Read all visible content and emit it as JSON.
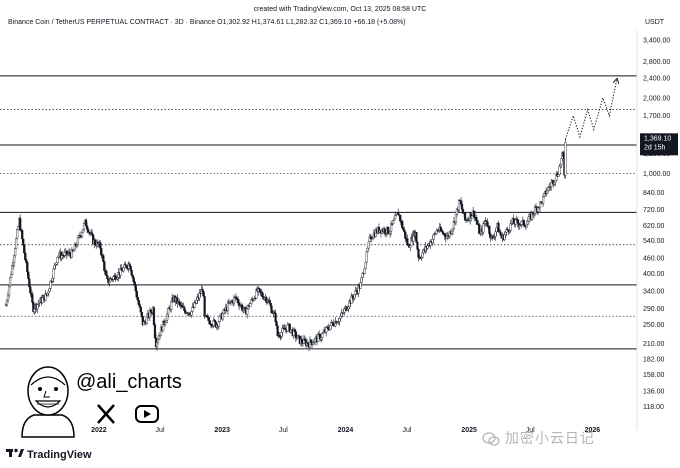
{
  "header": {
    "credit": "created with TradingView.com, Oct 13, 2025 08:58 UTC",
    "symbol_line": "Binance Coin / TetherUS PERPETUAL CONTRACT · 3D · Binance  O1,302.92  H1,374.61  L1,282.32  C1,369.10  +66.18 (+5.08%)",
    "currency": "USDT"
  },
  "price_badge": {
    "price": "1,369.10",
    "countdown": "2d 15h"
  },
  "branding": {
    "logo": "TradingView",
    "handle": "@ali_charts",
    "watermark": "加密小云日记"
  },
  "icons": [
    "x-logo-icon",
    "youtube-icon",
    "tradingview-logo-icon",
    "wechat-icon"
  ],
  "colors": {
    "candle": "#131722",
    "levels": "#131722",
    "badge_bg": "#131722",
    "badge_fg": "#ffffff"
  },
  "chart_data": {
    "type": "candlestick",
    "symbol": "BNBUSDT.P",
    "interval": "3D",
    "y_scale": "log",
    "ylim": [
      110,
      3600
    ],
    "y_ticks": [
      "3,400.00",
      "2,800.00",
      "2,400.00",
      "2,000.00",
      "1,700.00",
      "1,200.00",
      "1,000.00",
      "840.00",
      "720.00",
      "620.00",
      "540.00",
      "460.00",
      "400.00",
      "340.00",
      "290.00",
      "250.00",
      "210.00",
      "182.00",
      "158.00",
      "136.00",
      "118.00"
    ],
    "x_ticks": [
      {
        "label": "2022",
        "date": "2022-01-01"
      },
      {
        "label": "Jul",
        "date": "2022-07-01"
      },
      {
        "label": "2023",
        "date": "2023-01-01"
      },
      {
        "label": "Jul",
        "date": "2023-07-01"
      },
      {
        "label": "2024",
        "date": "2024-01-01"
      },
      {
        "label": "Jul",
        "date": "2024-07-01"
      },
      {
        "label": "2025",
        "date": "2025-01-01"
      },
      {
        "label": "Jul",
        "date": "2025-07-01"
      },
      {
        "label": "2026",
        "date": "2026-01-01"
      }
    ],
    "horizontal_levels": [
      {
        "price": 2450,
        "style": "solid"
      },
      {
        "price": 1800,
        "style": "dotted"
      },
      {
        "price": 1300,
        "style": "solid"
      },
      {
        "price": 1000,
        "style": "dotted"
      },
      {
        "price": 700,
        "style": "solid"
      },
      {
        "price": 520,
        "style": "dotted"
      },
      {
        "price": 360,
        "style": "solid"
      },
      {
        "price": 270,
        "style": "dotted"
      },
      {
        "price": 200,
        "style": "solid"
      }
    ],
    "price_path": [
      [
        "2021-04-01",
        300
      ],
      [
        "2021-05-10",
        650
      ],
      [
        "2021-06-20",
        290
      ],
      [
        "2021-08-01",
        330
      ],
      [
        "2021-09-01",
        470
      ],
      [
        "2021-10-15",
        480
      ],
      [
        "2021-11-22",
        640
      ],
      [
        "2021-12-15",
        540
      ],
      [
        "2022-01-05",
        510
      ],
      [
        "2022-01-25",
        370
      ],
      [
        "2022-03-01",
        400
      ],
      [
        "2022-04-02",
        440
      ],
      [
        "2022-05-12",
        250
      ],
      [
        "2022-06-10",
        290
      ],
      [
        "2022-06-18",
        210
      ],
      [
        "2022-07-20",
        270
      ],
      [
        "2022-08-10",
        320
      ],
      [
        "2022-09-10",
        285
      ],
      [
        "2022-10-01",
        280
      ],
      [
        "2022-11-05",
        350
      ],
      [
        "2022-11-10",
        265
      ],
      [
        "2022-12-15",
        250
      ],
      [
        "2023-01-20",
        300
      ],
      [
        "2023-02-10",
        320
      ],
      [
        "2023-03-10",
        280
      ],
      [
        "2023-04-15",
        340
      ],
      [
        "2023-05-15",
        315
      ],
      [
        "2023-06-10",
        260
      ],
      [
        "2023-06-12",
        225
      ],
      [
        "2023-07-15",
        245
      ],
      [
        "2023-08-20",
        215
      ],
      [
        "2023-09-15",
        210
      ],
      [
        "2023-10-20",
        225
      ],
      [
        "2023-11-20",
        250
      ],
      [
        "2023-12-15",
        265
      ],
      [
        "2024-01-15",
        310
      ],
      [
        "2024-02-15",
        360
      ],
      [
        "2024-03-15",
        560
      ],
      [
        "2024-04-10",
        600
      ],
      [
        "2024-05-10",
        590
      ],
      [
        "2024-06-05",
        700
      ],
      [
        "2024-07-05",
        510
      ],
      [
        "2024-07-25",
        590
      ],
      [
        "2024-08-05",
        460
      ],
      [
        "2024-09-15",
        550
      ],
      [
        "2024-09-30",
        600
      ],
      [
        "2024-10-30",
        560
      ],
      [
        "2024-11-15",
        620
      ],
      [
        "2024-12-04",
        780
      ],
      [
        "2024-12-20",
        650
      ],
      [
        "2025-01-15",
        700
      ],
      [
        "2025-02-03",
        570
      ],
      [
        "2025-02-20",
        660
      ],
      [
        "2025-03-10",
        540
      ],
      [
        "2025-03-25",
        620
      ],
      [
        "2025-04-08",
        550
      ],
      [
        "2025-05-10",
        640
      ],
      [
        "2025-06-20",
        630
      ],
      [
        "2025-07-15",
        720
      ],
      [
        "2025-08-01",
        760
      ],
      [
        "2025-08-20",
        860
      ],
      [
        "2025-09-20",
        1000
      ],
      [
        "2025-10-06",
        1200
      ],
      [
        "2025-10-10",
        1000
      ],
      [
        "2025-10-13",
        1369.1
      ]
    ],
    "projection_path": [
      [
        "2025-10-13",
        1369.1
      ],
      [
        "2025-11-05",
        1700
      ],
      [
        "2025-11-25",
        1400
      ],
      [
        "2025-12-18",
        1800
      ],
      [
        "2026-01-05",
        1500
      ],
      [
        "2026-02-01",
        2000
      ],
      [
        "2026-02-20",
        1700
      ],
      [
        "2026-03-15",
        2400
      ]
    ]
  }
}
